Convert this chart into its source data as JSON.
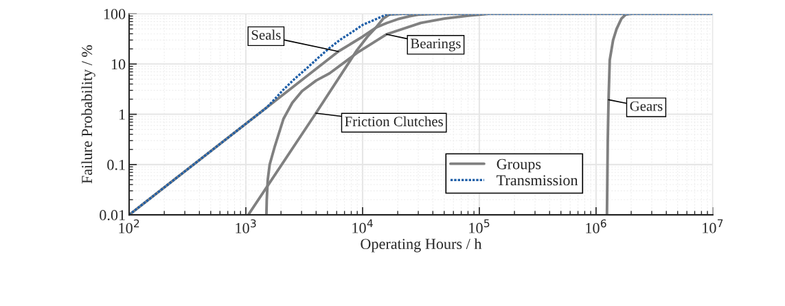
{
  "chart_data": {
    "type": "line",
    "xlabel": "Operating Hours / h",
    "ylabel": "Failure Probability / %",
    "log": "xy",
    "xlim": [
      100,
      10000000
    ],
    "ylim": [
      0.01,
      100
    ],
    "xticks": [
      {
        "value": 100,
        "label": "10$^{2}$"
      },
      {
        "value": 1000,
        "label": "10$^{3}$"
      },
      {
        "value": 10000,
        "label": "10$^{4}$"
      },
      {
        "value": 100000,
        "label": "10$^{5}$"
      },
      {
        "value": 1000000,
        "label": "10$^{6}$"
      },
      {
        "value": 10000000,
        "label": "10$^{7}$"
      }
    ],
    "yticks": [
      0.01,
      0.1,
      1,
      10,
      100
    ],
    "grid": true,
    "legend": "bottom right",
    "annotations": [
      {
        "text": "Seals",
        "x": 6200,
        "y": 17.8
      },
      {
        "text": "Bearings",
        "x": 16000,
        "y": 39
      },
      {
        "text": "Friction Clutches",
        "x": 3980,
        "y": 1.05
      },
      {
        "text": "Gears",
        "x": 1280000,
        "y": 1.95
      }
    ],
    "series": [
      {
        "name": "Groups",
        "color": "#808080",
        "line_style": "solid",
        "x": [
          100,
          1500,
          6200,
          10000,
          13000,
          16000,
          20000,
          25000,
          30000,
          40000,
          50000,
          10000000
        ],
        "values": [
          0.01,
          1.35,
          17.8,
          35,
          53,
          65,
          78,
          89,
          96,
          99,
          100,
          100
        ]
      },
      {
        "color": "#808080",
        "line_style": "solid",
        "x": [
          1500,
          1510,
          1540,
          1600,
          1770,
          2100,
          2500,
          3030,
          4000,
          5200,
          8950,
          16000,
          31600,
          50000,
          78600,
          120000,
          10000000
        ],
        "values": [
          0.01,
          0.02,
          0.05,
          0.1,
          0.23,
          0.81,
          1.7,
          2.9,
          4.7,
          6.5,
          16.6,
          39,
          66,
          80,
          91,
          100,
          100
        ]
      },
      {
        "color": "#808080",
        "line_style": "solid",
        "x": [
          1050,
          3980,
          8950,
          11000,
          13000,
          15000,
          17000,
          22000,
          10000000
        ],
        "values": [
          0.01,
          1.05,
          18.9,
          35,
          53,
          80,
          97,
          100,
          100
        ]
      },
      {
        "color": "#808080",
        "line_style": "solid",
        "x": [
          1240000,
          1260000,
          1280000,
          1310000,
          1400000,
          1500000,
          1650000,
          1800000,
          2000000,
          10000000
        ],
        "values": [
          0.01,
          0.3,
          1.95,
          12,
          30,
          50,
          80,
          97,
          100,
          100
        ]
      },
      {
        "name": "Transmission",
        "color": "#1f5fa8",
        "line_style": "dotted",
        "x": [
          100,
          1500,
          1800,
          2100,
          2600,
          3300,
          4200,
          5200,
          6500,
          8100,
          10000,
          13000,
          16000,
          20000,
          10000000
        ],
        "values": [
          0.01,
          1.35,
          2.1,
          3.1,
          5,
          8.1,
          13.5,
          20.8,
          31,
          43,
          60,
          78,
          97,
          100,
          100
        ]
      }
    ]
  }
}
